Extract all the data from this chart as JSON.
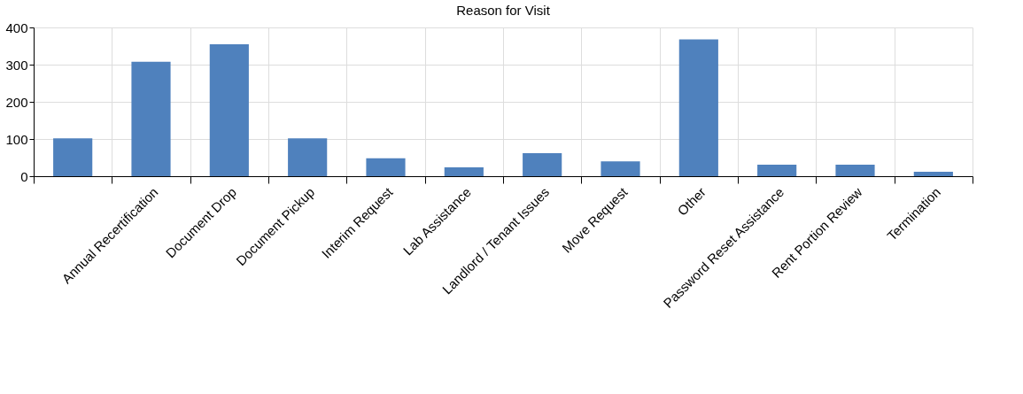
{
  "chart_data": {
    "type": "bar",
    "title": "Reason for Visit",
    "categories": [
      null,
      "Annual Recertification",
      "Document Drop",
      "Document Pickup",
      "Interim Request",
      "Lab Assistance",
      "Landlord / Tenant Issues",
      "Move Request",
      "Other",
      "Password Reset Assistance",
      "Rent Portion Review",
      "Termination"
    ],
    "values": [
      102,
      308,
      355,
      102,
      48,
      24,
      62,
      40,
      368,
      31,
      31,
      12
    ],
    "color": "#4f81bd",
    "ylim": [
      0,
      400
    ],
    "yticks": [
      0,
      100,
      200,
      300,
      400
    ],
    "grid": true
  }
}
